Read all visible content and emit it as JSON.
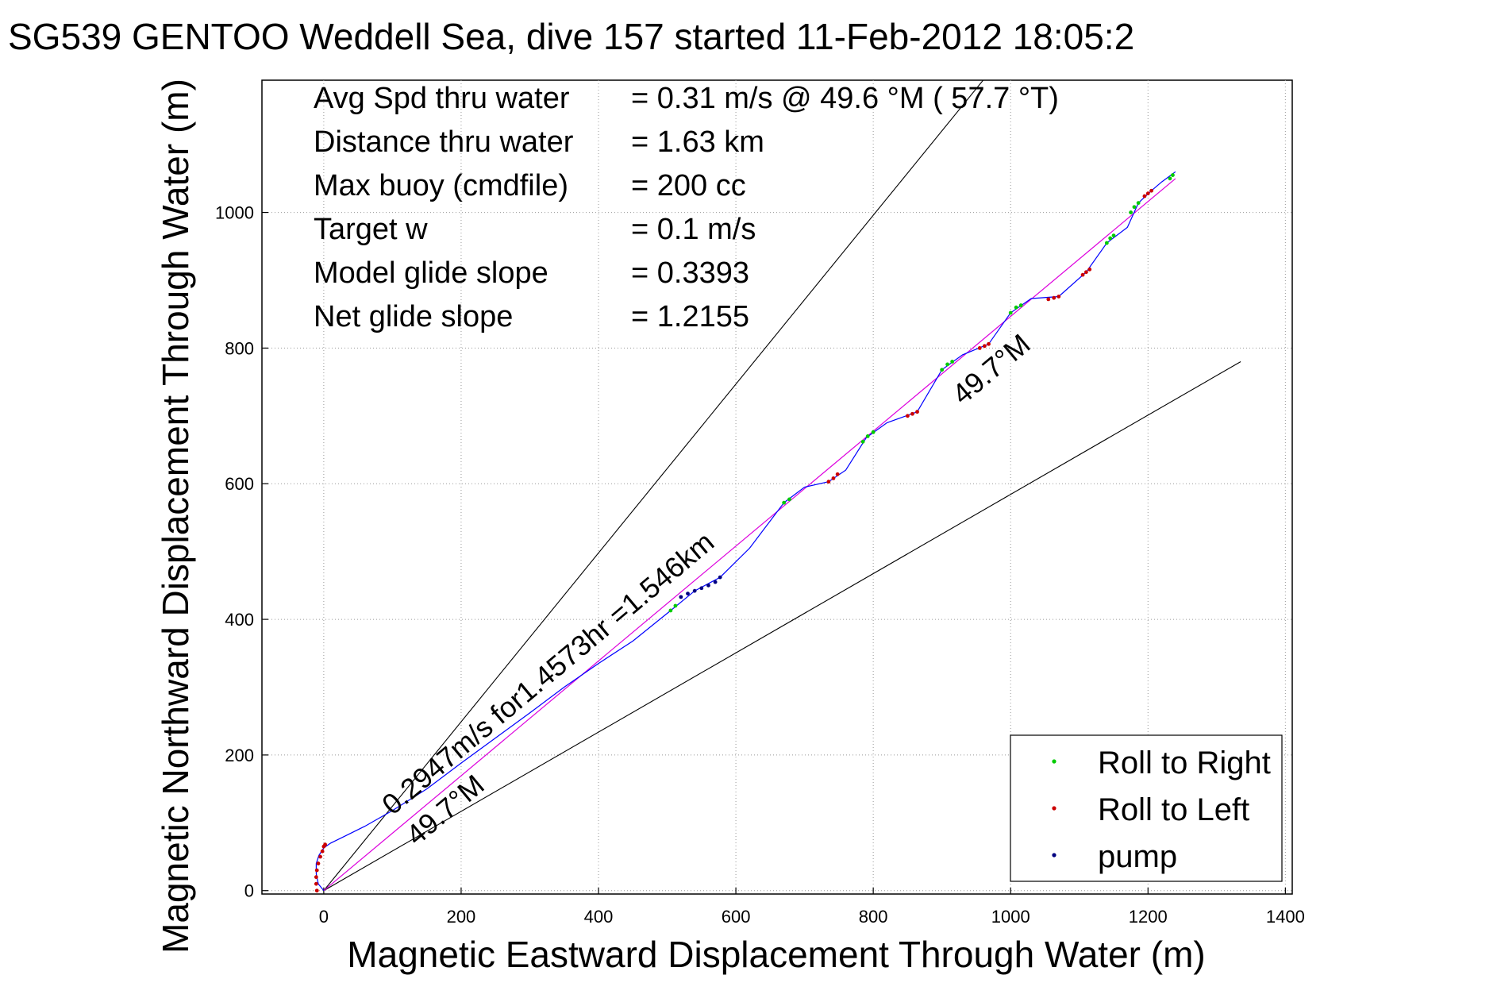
{
  "chart_data": {
    "type": "scatter",
    "title": "SG539 GENTOO Weddell Sea, dive 157 started 11-Feb-2012 18:05:2",
    "xlabel": "Magnetic Eastward Displacement Through Water (m)",
    "ylabel": "Magnetic Northward Displacement Through Water (m)",
    "xlim": [
      -90,
      1410
    ],
    "ylim": [
      -5,
      1195
    ],
    "xticks": [
      0,
      200,
      400,
      600,
      800,
      1000,
      1200,
      1400
    ],
    "yticks": [
      0,
      200,
      400,
      600,
      800,
      1000
    ],
    "grid": true,
    "legend_position": "bottom-right",
    "stats": [
      {
        "label": "Avg Spd thru water",
        "value": "=  0.31 m/s @  49.6 °M ( 57.7 °T)"
      },
      {
        "label": "Distance thru water",
        "value": "=  1.63 km"
      },
      {
        "label": "Max buoy (cmdfile)",
        "value": "= 200 cc"
      },
      {
        "label": "Target w",
        "value": "= 0.1 m/s"
      },
      {
        "label": "Model glide slope",
        "value": "= 0.3393"
      },
      {
        "label": "Net glide slope",
        "value": "= 1.2155"
      }
    ],
    "annotations": [
      {
        "text": "0.2947m/s for1.4573hr =1.546km",
        "x": 100,
        "y": 110
      },
      {
        "text": "49.7°M",
        "x": 135,
        "y": 65
      },
      {
        "text": "49.7°M",
        "x": 930,
        "y": 715
      }
    ],
    "series": [
      {
        "name": "Roll to Right",
        "color": "#00cc00",
        "points": [
          [
            505,
            413
          ],
          [
            512,
            420
          ],
          [
            670,
            572
          ],
          [
            678,
            577
          ],
          [
            785,
            662
          ],
          [
            792,
            670
          ],
          [
            800,
            676
          ],
          [
            900,
            768
          ],
          [
            908,
            776
          ],
          [
            915,
            780
          ],
          [
            1000,
            852
          ],
          [
            1008,
            860
          ],
          [
            1015,
            863
          ],
          [
            1140,
            955
          ],
          [
            1145,
            962
          ],
          [
            1150,
            966
          ],
          [
            1175,
            1000
          ],
          [
            1180,
            1008
          ],
          [
            1186,
            1014
          ],
          [
            1232,
            1050
          ],
          [
            1236,
            1055
          ]
        ]
      },
      {
        "name": "Roll to Left",
        "color": "#cc0000",
        "points": [
          [
            -10,
            0
          ],
          [
            -11,
            10
          ],
          [
            -11,
            20
          ],
          [
            -10,
            30
          ],
          [
            -8,
            40
          ],
          [
            -5,
            50
          ],
          [
            -2,
            58
          ],
          [
            0,
            65
          ],
          [
            2,
            68
          ],
          [
            735,
            603
          ],
          [
            742,
            608
          ],
          [
            748,
            614
          ],
          [
            850,
            700
          ],
          [
            857,
            703
          ],
          [
            864,
            706
          ],
          [
            955,
            800
          ],
          [
            962,
            803
          ],
          [
            968,
            806
          ],
          [
            1055,
            872
          ],
          [
            1063,
            874
          ],
          [
            1070,
            876
          ],
          [
            1105,
            908
          ],
          [
            1110,
            912
          ],
          [
            1115,
            916
          ],
          [
            1195,
            1024
          ],
          [
            1200,
            1028
          ],
          [
            1205,
            1032
          ]
        ]
      },
      {
        "name": "pump",
        "color": "#000080",
        "points": [
          [
            520,
            433
          ],
          [
            530,
            438
          ],
          [
            540,
            442
          ],
          [
            550,
            446
          ],
          [
            560,
            450
          ],
          [
            570,
            455
          ],
          [
            577,
            462
          ]
        ]
      }
    ],
    "track": [
      [
        0,
        0
      ],
      [
        -8,
        10
      ],
      [
        -11,
        25
      ],
      [
        -11,
        40
      ],
      [
        -7,
        52
      ],
      [
        0,
        63
      ],
      [
        10,
        70
      ],
      [
        30,
        80
      ],
      [
        60,
        95
      ],
      [
        100,
        118
      ],
      [
        150,
        150
      ],
      [
        200,
        188
      ],
      [
        250,
        225
      ],
      [
        300,
        262
      ],
      [
        350,
        300
      ],
      [
        400,
        335
      ],
      [
        450,
        368
      ],
      [
        505,
        413
      ],
      [
        540,
        442
      ],
      [
        577,
        462
      ],
      [
        620,
        505
      ],
      [
        670,
        572
      ],
      [
        700,
        595
      ],
      [
        735,
        603
      ],
      [
        760,
        620
      ],
      [
        790,
        668
      ],
      [
        820,
        690
      ],
      [
        864,
        706
      ],
      [
        900,
        768
      ],
      [
        930,
        790
      ],
      [
        968,
        806
      ],
      [
        1000,
        852
      ],
      [
        1030,
        873
      ],
      [
        1070,
        876
      ],
      [
        1110,
        912
      ],
      [
        1140,
        955
      ],
      [
        1170,
        978
      ],
      [
        1186,
        1014
      ],
      [
        1205,
        1032
      ],
      [
        1220,
        1045
      ],
      [
        1240,
        1060
      ]
    ],
    "net_line": [
      [
        0,
        0
      ],
      [
        1240,
        1050
      ]
    ],
    "cone_lines": [
      [
        [
          0,
          0
        ],
        [
          960,
          1195
        ]
      ],
      [
        [
          0,
          0
        ],
        [
          1335,
          780
        ]
      ]
    ]
  }
}
